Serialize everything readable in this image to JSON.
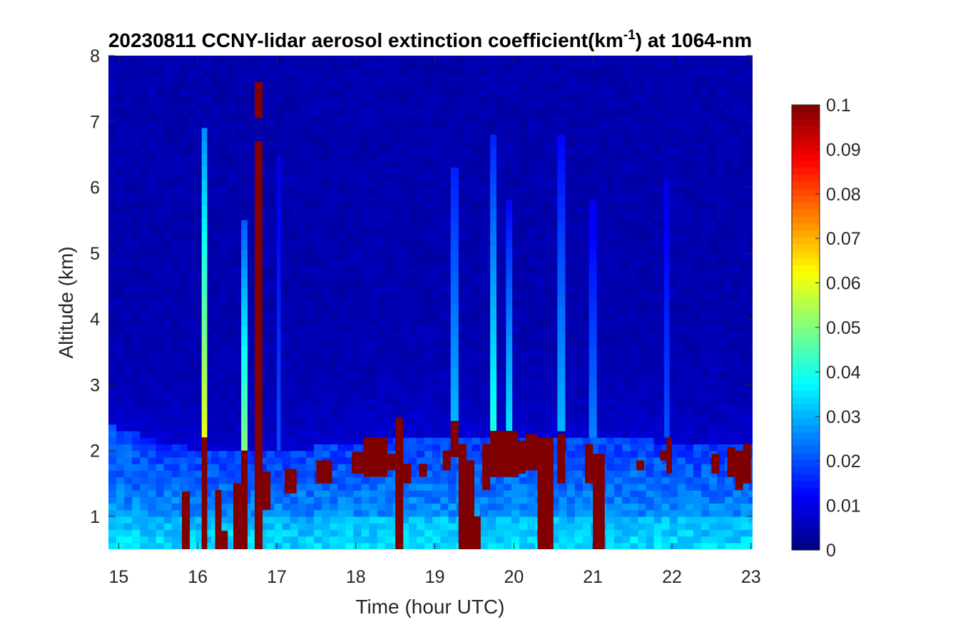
{
  "chart_data": {
    "type": "heatmap",
    "title": {
      "prefix": "20230811 CCNY-lidar aerosol extinction coefficient(km",
      "superscript": "-1",
      "suffix": ") at 1064-nm"
    },
    "xlabel": "Time (hour UTC)",
    "ylabel": "Altitude (km)",
    "xlim": [
      14.87,
      23.02
    ],
    "ylim": [
      0.5,
      8
    ],
    "x_ticks": [
      "15",
      "16",
      "17",
      "18",
      "19",
      "20",
      "21",
      "22",
      "23"
    ],
    "y_ticks": [
      "1",
      "2",
      "3",
      "4",
      "5",
      "6",
      "7",
      "8"
    ],
    "colorbar": {
      "colormap": "jet",
      "range": [
        0,
        0.1
      ],
      "ticks": [
        "0",
        "0.01",
        "0.02",
        "0.03",
        "0.04",
        "0.05",
        "0.06",
        "0.07",
        "0.08",
        "0.09",
        "0.1"
      ]
    },
    "time_bin_hours": 0.1,
    "boundary_layer_top_km": [
      {
        "t": 14.9,
        "h": 2.4
      },
      {
        "t": 15.5,
        "h": 2.15
      },
      {
        "t": 16.0,
        "h": 2.0
      },
      {
        "t": 16.5,
        "h": 1.95
      },
      {
        "t": 17.0,
        "h": 2.0
      },
      {
        "t": 17.5,
        "h": 2.05
      },
      {
        "t": 18.0,
        "h": 2.1
      },
      {
        "t": 18.5,
        "h": 2.2
      },
      {
        "t": 19.0,
        "h": 2.25
      },
      {
        "t": 19.5,
        "h": 2.2
      },
      {
        "t": 20.0,
        "h": 2.2
      },
      {
        "t": 20.5,
        "h": 2.15
      },
      {
        "t": 21.0,
        "h": 2.2
      },
      {
        "t": 21.5,
        "h": 2.2
      },
      {
        "t": 22.0,
        "h": 2.1
      },
      {
        "t": 22.5,
        "h": 2.05
      },
      {
        "t": 23.0,
        "h": 2.1
      }
    ],
    "saturated_regions": [
      {
        "t0": 15.8,
        "t1": 15.9,
        "h0": 0.5,
        "h1": 1.38,
        "v": 0.1
      },
      {
        "t0": 16.05,
        "t1": 16.12,
        "h0": 0.5,
        "h1": 2.2,
        "v": 0.1
      },
      {
        "t0": 16.22,
        "t1": 16.3,
        "h0": 0.5,
        "h1": 1.4,
        "v": 0.1
      },
      {
        "t0": 16.3,
        "t1": 16.38,
        "h0": 0.5,
        "h1": 0.78,
        "v": 0.1
      },
      {
        "t0": 16.45,
        "t1": 16.55,
        "h0": 0.5,
        "h1": 1.5,
        "v": 0.1
      },
      {
        "t0": 16.55,
        "t1": 16.63,
        "h0": 0.5,
        "h1": 2.0,
        "v": 0.1
      },
      {
        "t0": 16.72,
        "t1": 16.82,
        "h0": 0.5,
        "h1": 6.7,
        "v": 0.1
      },
      {
        "t0": 16.72,
        "t1": 16.82,
        "h0": 7.05,
        "h1": 7.6,
        "v": 0.1
      },
      {
        "t0": 16.82,
        "t1": 16.92,
        "h0": 1.1,
        "h1": 1.68,
        "v": 0.1
      },
      {
        "t0": 17.1,
        "t1": 17.25,
        "h0": 1.35,
        "h1": 1.72,
        "v": 0.1
      },
      {
        "t0": 17.5,
        "t1": 17.7,
        "h0": 1.5,
        "h1": 1.85,
        "v": 0.1
      },
      {
        "t0": 17.95,
        "t1": 18.1,
        "h0": 1.65,
        "h1": 1.98,
        "v": 0.1
      },
      {
        "t0": 18.1,
        "t1": 18.4,
        "h0": 1.6,
        "h1": 2.2,
        "v": 0.1
      },
      {
        "t0": 18.4,
        "t1": 18.5,
        "h0": 1.7,
        "h1": 1.95,
        "v": 0.1
      },
      {
        "t0": 18.5,
        "t1": 18.6,
        "h0": 0.5,
        "h1": 2.5,
        "v": 0.1
      },
      {
        "t0": 18.6,
        "t1": 18.7,
        "h0": 1.5,
        "h1": 1.8,
        "v": 0.1
      },
      {
        "t0": 18.8,
        "t1": 18.9,
        "h0": 1.6,
        "h1": 1.8,
        "v": 0.1
      },
      {
        "t0": 19.1,
        "t1": 19.2,
        "h0": 1.7,
        "h1": 2.0,
        "v": 0.1
      },
      {
        "t0": 19.2,
        "t1": 19.3,
        "h0": 1.9,
        "h1": 2.45,
        "v": 0.1
      },
      {
        "t0": 19.3,
        "t1": 19.4,
        "h0": 0.5,
        "h1": 2.1,
        "v": 0.1
      },
      {
        "t0": 19.4,
        "t1": 19.5,
        "h0": 0.5,
        "h1": 1.85,
        "v": 0.1
      },
      {
        "t0": 19.5,
        "t1": 19.58,
        "h0": 0.5,
        "h1": 1.0,
        "v": 0.1
      },
      {
        "t0": 19.6,
        "t1": 19.7,
        "h0": 1.4,
        "h1": 2.1,
        "v": 0.1
      },
      {
        "t0": 19.7,
        "t1": 20.05,
        "h0": 1.6,
        "h1": 2.3,
        "v": 0.1
      },
      {
        "t0": 20.05,
        "t1": 20.15,
        "h0": 1.65,
        "h1": 2.15,
        "v": 0.1
      },
      {
        "t0": 20.15,
        "t1": 20.3,
        "h0": 1.7,
        "h1": 2.25,
        "v": 0.1
      },
      {
        "t0": 20.3,
        "t1": 20.5,
        "h0": 0.5,
        "h1": 2.2,
        "v": 0.1
      },
      {
        "t0": 20.55,
        "t1": 20.65,
        "h0": 1.5,
        "h1": 2.25,
        "v": 0.1
      },
      {
        "t0": 20.9,
        "t1": 21.0,
        "h0": 1.5,
        "h1": 2.1,
        "v": 0.1
      },
      {
        "t0": 21.0,
        "t1": 21.15,
        "h0": 0.5,
        "h1": 1.95,
        "v": 0.1
      },
      {
        "t0": 21.55,
        "t1": 21.65,
        "h0": 1.7,
        "h1": 1.85,
        "v": 0.1
      },
      {
        "t0": 21.85,
        "t1": 21.93,
        "h0": 1.85,
        "h1": 2.0,
        "v": 0.1
      },
      {
        "t0": 21.93,
        "t1": 22.0,
        "h0": 1.65,
        "h1": 2.2,
        "v": 0.1
      },
      {
        "t0": 22.5,
        "t1": 22.6,
        "h0": 1.65,
        "h1": 1.95,
        "v": 0.1
      },
      {
        "t0": 22.7,
        "t1": 22.8,
        "h0": 1.6,
        "h1": 2.05,
        "v": 0.1
      },
      {
        "t0": 22.8,
        "t1": 22.9,
        "h0": 1.4,
        "h1": 2.0,
        "v": 0.1
      },
      {
        "t0": 22.9,
        "t1": 23.0,
        "h0": 1.5,
        "h1": 2.1,
        "v": 0.1
      }
    ],
    "plumes": [
      {
        "t0": 16.05,
        "t1": 16.12,
        "h0": 2.2,
        "h1": 6.9,
        "v0": 0.06,
        "v1": 0.025
      },
      {
        "t0": 16.55,
        "t1": 16.63,
        "h0": 2.0,
        "h1": 5.5,
        "v0": 0.05,
        "v1": 0.02
      },
      {
        "t0": 17.0,
        "t1": 17.05,
        "h0": 2.0,
        "h1": 6.5,
        "v0": 0.02,
        "v1": 0.01
      },
      {
        "t0": 19.2,
        "t1": 19.3,
        "h0": 2.45,
        "h1": 6.3,
        "v0": 0.03,
        "v1": 0.015
      },
      {
        "t0": 19.7,
        "t1": 19.78,
        "h0": 2.3,
        "h1": 6.8,
        "v0": 0.04,
        "v1": 0.015
      },
      {
        "t0": 19.9,
        "t1": 19.98,
        "h0": 2.3,
        "h1": 5.8,
        "v0": 0.035,
        "v1": 0.012
      },
      {
        "t0": 20.55,
        "t1": 20.65,
        "h0": 2.3,
        "h1": 6.8,
        "v0": 0.03,
        "v1": 0.012
      },
      {
        "t0": 20.95,
        "t1": 21.05,
        "h0": 2.2,
        "h1": 5.8,
        "v0": 0.025,
        "v1": 0.01
      },
      {
        "t0": 21.9,
        "t1": 21.97,
        "h0": 2.2,
        "h1": 6.1,
        "v0": 0.02,
        "v1": 0.01
      }
    ]
  }
}
